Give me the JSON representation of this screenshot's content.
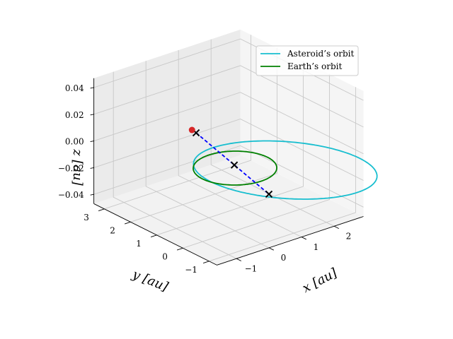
{
  "chart_data": {
    "type": "3d-line",
    "xlabel": "$x$ [au]",
    "ylabel": "$y$ [au]",
    "zlabel": "$z$ [au]",
    "xlabel_display": "x [au]",
    "ylabel_display": "y [au]",
    "zlabel_display": "z [au]",
    "xlim": [
      -1.6,
      2.9
    ],
    "ylim": [
      -1.3,
      3.4
    ],
    "zlim": [
      -0.047,
      0.047
    ],
    "xticks": [
      {
        "v": -1,
        "label": "−1"
      },
      {
        "v": 0,
        "label": "0"
      },
      {
        "v": 1,
        "label": "1"
      },
      {
        "v": 2,
        "label": "2"
      }
    ],
    "yticks": [
      {
        "v": -1,
        "label": "−1"
      },
      {
        "v": 0,
        "label": "0"
      },
      {
        "v": 1,
        "label": "1"
      },
      {
        "v": 2,
        "label": "2"
      },
      {
        "v": 3,
        "label": "3"
      }
    ],
    "zticks": [
      {
        "v": -0.04,
        "label": "−0.04"
      },
      {
        "v": -0.02,
        "label": "−0.02"
      },
      {
        "v": 0,
        "label": "0.00"
      },
      {
        "v": 0.02,
        "label": "0.02"
      },
      {
        "v": 0.04,
        "label": "0.04"
      }
    ],
    "grid": true,
    "legend_position": "top-right",
    "series": [
      {
        "name": "Asteroid’s orbit",
        "color": "#17becf",
        "kind": "ellipse",
        "a": 2.2,
        "e": 0.55,
        "inclination_deg": 1.4,
        "node_deg": 135
      },
      {
        "name": "Earth’s orbit",
        "color": "#008000",
        "kind": "circle",
        "radius": 1.0
      }
    ],
    "markers": [
      {
        "kind": "x",
        "color": "#000000",
        "point": [
          -0.35,
          1.05,
          0.019
        ]
      },
      {
        "kind": "x",
        "color": "#000000",
        "point": [
          0.1,
          0.15,
          0.0
        ]
      },
      {
        "kind": "x",
        "color": "#000000",
        "point": [
          0.6,
          -0.55,
          -0.019
        ]
      },
      {
        "kind": "dot",
        "color": "#d62728",
        "point": [
          -0.42,
          1.12,
          0.021
        ]
      }
    ],
    "segments": [
      {
        "color": "#0000ff",
        "dashed": true,
        "from": [
          -0.35,
          1.05,
          0.019
        ],
        "to": [
          0.6,
          -0.55,
          -0.019
        ]
      }
    ]
  }
}
